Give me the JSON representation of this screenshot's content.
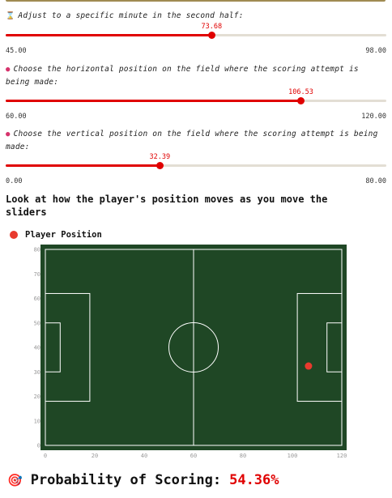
{
  "sliders": [
    {
      "icon": "⌛",
      "label": "Adjust to a specific minute in the second half:",
      "value": 73.68,
      "value_text": "73.68",
      "min": 45,
      "max": 98,
      "min_text": "45.00",
      "max_text": "98.00"
    },
    {
      "icon": "●",
      "label": "Choose the horizontal position on the field where the scoring attempt is being made:",
      "value": 106.53,
      "value_text": "106.53",
      "min": 60,
      "max": 120,
      "min_text": "60.00",
      "max_text": "120.00"
    },
    {
      "icon": "●",
      "label": "Choose the vertical position on the field where the scoring attempt is being made:",
      "value": 32.39,
      "value_text": "32.39",
      "min": 0,
      "max": 80,
      "min_text": "0.00",
      "max_text": "80.00"
    }
  ],
  "section_heading": "Look at how the player's position moves as you move the sliders",
  "chart_data": {
    "type": "scatter",
    "legend": [
      "Player Position"
    ],
    "legend_placement": "top-left",
    "x_range": [
      0,
      120
    ],
    "y_range": [
      0,
      80
    ],
    "x_ticks": [
      "0",
      "20",
      "40",
      "60",
      "80",
      "100",
      "120"
    ],
    "y_ticks": [
      "0",
      "10",
      "20",
      "30",
      "40",
      "50",
      "60",
      "70",
      "80"
    ],
    "points": [
      {
        "x": 106.53,
        "y": 32.39
      }
    ],
    "background_color": "#1f4725",
    "line_color": "#ffffff",
    "point_color": "#e83a2e"
  },
  "result": {
    "icon": "🎯",
    "label": "Probability of Scoring:",
    "value": "54.36%",
    "value_color": "#e00000"
  }
}
